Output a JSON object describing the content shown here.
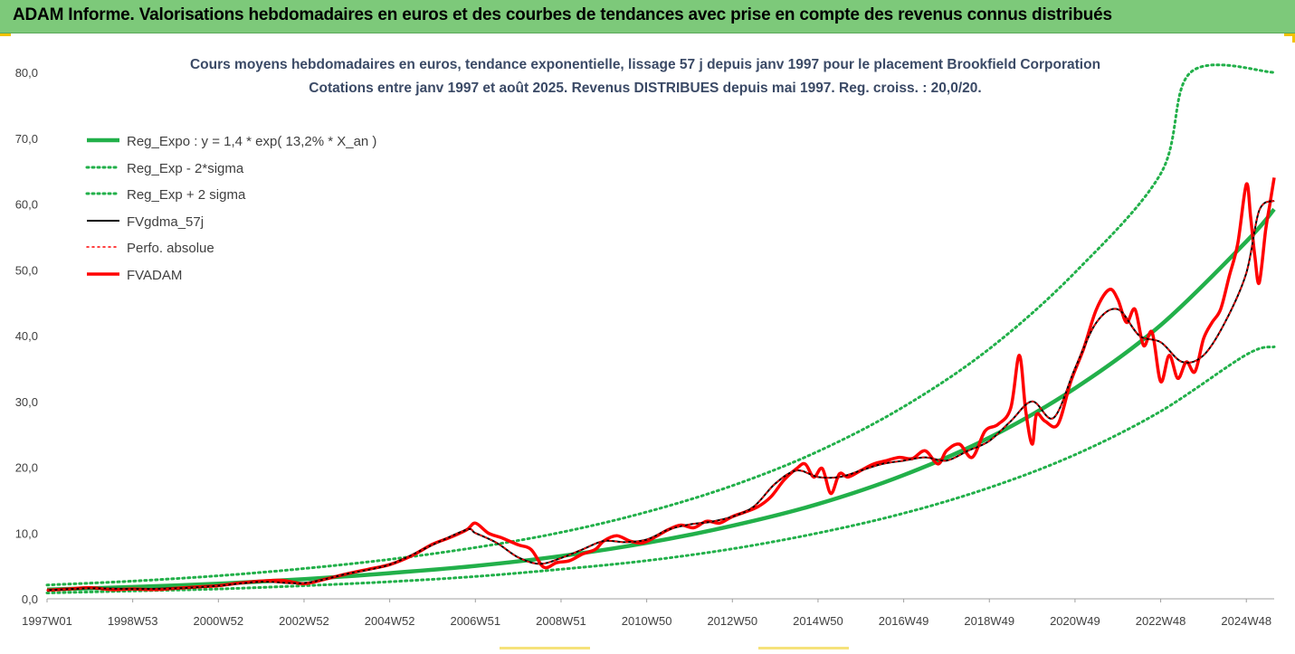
{
  "banner": {
    "title": "ADAM Informe. Valorisations hebdomadaires en euros et des courbes de tendances avec prise en compte des revenus connus distribués"
  },
  "colors": {
    "banner_bg": "#7dc97a",
    "trend": "#22b04a",
    "band": "#22b04a",
    "smooth": "#000000",
    "price": "#ff0000"
  },
  "chart_data": {
    "type": "line",
    "title": "Cours moyens hebdomadaires en euros, tendance exponentielle, lissage 57 j depuis janv 1997 pour le placement Brookfield Corporation",
    "subtitle": "Cotations entre janv 1997 et août 2025. Revenus DISTRIBUES depuis mai 1997. Reg. croiss. : 20,0/20.",
    "xlabel": "",
    "ylabel": "",
    "ylim": [
      0,
      80
    ],
    "yticks": [
      "0,0",
      "10,0",
      "20,0",
      "30,0",
      "40,0",
      "50,0",
      "60,0",
      "70,0",
      "80,0"
    ],
    "xlim": [
      1997.0,
      2025.65
    ],
    "xtick_labels": [
      "1997W01",
      "1998W53",
      "2000W52",
      "2002W52",
      "2004W52",
      "2006W51",
      "2008W51",
      "2010W50",
      "2012W50",
      "2014W50",
      "2016W49",
      "2018W49",
      "2020W49",
      "2022W48",
      "2024W48"
    ],
    "xtick_years": [
      1997.0,
      1999.0,
      2001.0,
      2003.0,
      2005.0,
      2007.0,
      2009.0,
      2011.0,
      2013.0,
      2015.0,
      2017.0,
      2019.0,
      2021.0,
      2023.0,
      2025.0
    ],
    "grid": false,
    "legend_position": "top-left",
    "series": [
      {
        "name": "Reg_Expo : y = 1,4 * exp( 13,2% *  X_an )",
        "style": "solid-thick",
        "color": "#22b04a",
        "x": [
          1997.0,
          1999.0,
          2001.0,
          2003.0,
          2005.0,
          2007.0,
          2009.0,
          2011.0,
          2013.0,
          2015.0,
          2017.0,
          2019.0,
          2021.0,
          2023.0,
          2025.0,
          2025.65
        ],
        "values": [
          1.4,
          1.8,
          2.3,
          3.0,
          3.9,
          5.0,
          6.5,
          8.5,
          11.1,
          14.4,
          18.8,
          24.5,
          32.0,
          41.6,
          54.3,
          59.2
        ]
      },
      {
        "name": "Reg_Exp - 2*sigma",
        "style": "dotted",
        "color": "#22b04a",
        "x": [
          1997.0,
          1999.0,
          2001.0,
          2003.0,
          2005.0,
          2007.0,
          2009.0,
          2011.0,
          2013.0,
          2015.0,
          2017.0,
          2019.0,
          2021.0,
          2023.0,
          2025.0,
          2025.65
        ],
        "values": [
          0.9,
          1.2,
          1.5,
          2.0,
          2.6,
          3.4,
          4.5,
          5.8,
          7.6,
          10.0,
          13.0,
          16.9,
          21.9,
          28.5,
          37.1,
          38.3
        ]
      },
      {
        "name": "Reg_Exp + 2 sigma",
        "style": "dotted",
        "color": "#22b04a",
        "x": [
          1997.0,
          1999.0,
          2001.0,
          2003.0,
          2005.0,
          2007.0,
          2009.0,
          2011.0,
          2013.0,
          2015.0,
          2017.0,
          2019.0,
          2021.0,
          2023.0,
          2023.7,
          2025.65
        ],
        "values": [
          2.1,
          2.7,
          3.5,
          4.6,
          6.0,
          7.8,
          10.1,
          13.2,
          17.2,
          22.4,
          29.2,
          38.0,
          49.6,
          64.6,
          80.0,
          80.0
        ]
      },
      {
        "name": "FVgdma_57j",
        "style": "solid",
        "color": "#000000",
        "x": [
          1997.0,
          1998.0,
          1999.0,
          2000.0,
          2001.0,
          2002.0,
          2003.0,
          2004.0,
          2005.0,
          2006.0,
          2006.8,
          2007.0,
          2007.5,
          2008.0,
          2008.5,
          2009.0,
          2009.5,
          2010.0,
          2010.5,
          2011.0,
          2011.5,
          2012.0,
          2012.5,
          2013.0,
          2013.5,
          2014.0,
          2014.5,
          2015.0,
          2015.5,
          2016.0,
          2016.5,
          2017.0,
          2017.5,
          2018.0,
          2018.5,
          2019.0,
          2019.5,
          2020.0,
          2020.5,
          2021.0,
          2021.5,
          2022.0,
          2022.5,
          2023.0,
          2023.5,
          2024.0,
          2024.5,
          2025.0,
          2025.3,
          2025.65
        ],
        "values": [
          1.3,
          1.6,
          1.5,
          1.6,
          2.0,
          2.6,
          2.4,
          3.8,
          5.2,
          8.2,
          10.5,
          10.0,
          8.5,
          6.3,
          5.3,
          6.2,
          7.5,
          8.8,
          8.6,
          9.0,
          10.5,
          11.3,
          11.7,
          12.5,
          14.0,
          17.5,
          19.5,
          18.5,
          18.5,
          19.5,
          20.5,
          21.0,
          21.5,
          21.0,
          22.5,
          24.0,
          27.0,
          30.0,
          27.5,
          35.0,
          42.0,
          44.0,
          40.0,
          39.0,
          36.0,
          37.0,
          42.0,
          49.5,
          59.0,
          60.5
        ]
      },
      {
        "name": "Perfo. absolue",
        "style": "dotted",
        "color": "#ff0000",
        "x": [
          1997.0,
          1998.0,
          1999.0,
          2000.0,
          2001.0,
          2002.0,
          2003.0,
          2004.0,
          2005.0,
          2006.0,
          2006.8,
          2007.0,
          2007.5,
          2008.0,
          2008.5,
          2009.0,
          2009.5,
          2010.0,
          2010.5,
          2011.0,
          2011.5,
          2012.0,
          2012.5,
          2013.0,
          2013.5,
          2014.0,
          2014.5,
          2015.0,
          2015.5,
          2016.0,
          2016.5,
          2017.0,
          2017.5,
          2018.0,
          2018.5,
          2019.0,
          2019.5,
          2020.0,
          2020.5,
          2021.0,
          2021.5,
          2022.0,
          2022.5,
          2023.0,
          2023.5,
          2024.0,
          2024.5,
          2025.0,
          2025.3,
          2025.65
        ],
        "values": [
          1.3,
          1.6,
          1.5,
          1.6,
          2.0,
          2.6,
          2.4,
          3.8,
          5.2,
          8.2,
          10.5,
          10.0,
          8.5,
          6.3,
          5.3,
          6.2,
          7.5,
          8.8,
          8.6,
          9.0,
          10.5,
          11.3,
          11.7,
          12.5,
          14.0,
          17.5,
          19.5,
          18.5,
          18.5,
          19.5,
          20.5,
          21.0,
          21.5,
          21.0,
          22.5,
          24.0,
          27.0,
          30.0,
          27.5,
          35.0,
          42.0,
          44.0,
          40.0,
          39.0,
          36.0,
          37.0,
          42.0,
          49.5,
          59.0,
          60.5
        ]
      },
      {
        "name": "FVADAM",
        "style": "solid-thick",
        "color": "#ff0000",
        "x": [
          1997.0,
          1997.5,
          1998.0,
          1998.5,
          1999.0,
          1999.5,
          2000.0,
          2000.5,
          2001.0,
          2001.5,
          2002.0,
          2002.5,
          2003.0,
          2003.5,
          2004.0,
          2004.5,
          2005.0,
          2005.5,
          2006.0,
          2006.4,
          2006.8,
          2007.0,
          2007.3,
          2007.6,
          2008.0,
          2008.3,
          2008.6,
          2008.9,
          2009.2,
          2009.5,
          2009.8,
          2010.0,
          2010.3,
          2010.6,
          2010.9,
          2011.2,
          2011.5,
          2011.8,
          2012.1,
          2012.4,
          2012.7,
          2013.0,
          2013.3,
          2013.6,
          2013.9,
          2014.2,
          2014.5,
          2014.7,
          2014.9,
          2015.1,
          2015.3,
          2015.5,
          2015.7,
          2016.0,
          2016.3,
          2016.6,
          2016.9,
          2017.2,
          2017.5,
          2017.8,
          2018.0,
          2018.3,
          2018.6,
          2018.9,
          2019.2,
          2019.5,
          2019.7,
          2019.85,
          2020.0,
          2020.1,
          2020.3,
          2020.6,
          2020.9,
          2021.2,
          2021.5,
          2021.8,
          2022.0,
          2022.2,
          2022.4,
          2022.6,
          2022.8,
          2023.0,
          2023.2,
          2023.4,
          2023.6,
          2023.8,
          2024.0,
          2024.2,
          2024.4,
          2024.6,
          2024.8,
          2025.0,
          2025.1,
          2025.2,
          2025.3,
          2025.45,
          2025.55,
          2025.65
        ],
        "values": [
          1.3,
          1.5,
          1.7,
          1.4,
          1.5,
          1.4,
          1.6,
          1.8,
          2.0,
          2.4,
          2.7,
          2.8,
          2.3,
          3.0,
          3.8,
          4.5,
          5.2,
          6.5,
          8.3,
          9.3,
          10.5,
          11.5,
          10.0,
          9.3,
          8.2,
          7.5,
          4.8,
          5.5,
          5.8,
          6.8,
          7.5,
          8.8,
          9.6,
          8.8,
          8.5,
          9.4,
          10.5,
          11.2,
          10.8,
          11.8,
          11.5,
          12.5,
          13.2,
          14.0,
          15.5,
          18.0,
          19.8,
          20.5,
          18.5,
          19.8,
          16.0,
          19.0,
          18.5,
          19.5,
          20.5,
          21.0,
          21.5,
          21.3,
          22.5,
          20.5,
          22.5,
          23.5,
          21.5,
          25.5,
          26.5,
          29.0,
          37.0,
          28.5,
          23.5,
          28.0,
          27.0,
          26.5,
          33.0,
          38.0,
          44.0,
          47.0,
          45.5,
          42.0,
          44.0,
          38.5,
          40.5,
          33.0,
          37.0,
          33.5,
          36.0,
          34.5,
          39.5,
          42.0,
          44.0,
          49.0,
          54.0,
          63.0,
          58.0,
          52.0,
          48.0,
          56.0,
          60.0,
          64.0
        ]
      }
    ]
  }
}
